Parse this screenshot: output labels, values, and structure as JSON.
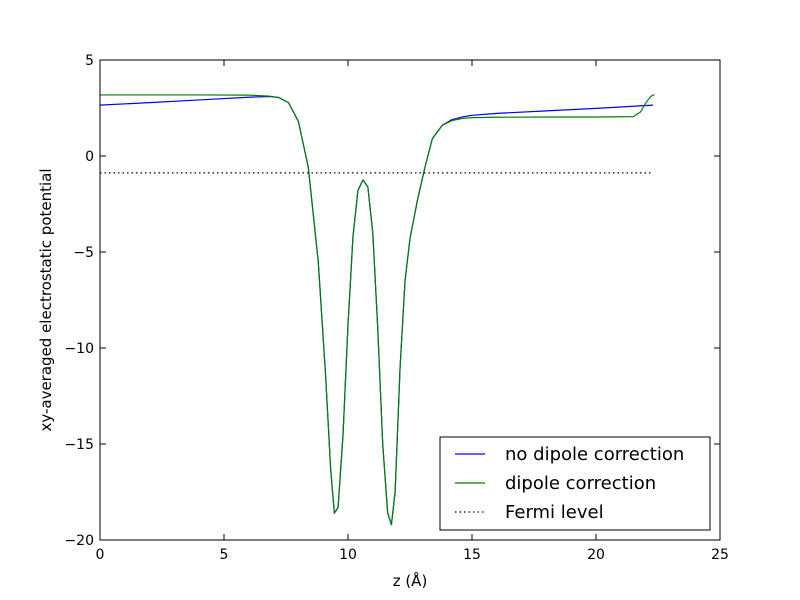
{
  "chart_data": {
    "type": "line",
    "title": "",
    "xlabel": "z (Å)",
    "ylabel": "xy-averaged electrostatic potential",
    "xlim": [
      0,
      25
    ],
    "ylim": [
      -20,
      5
    ],
    "xticks": [
      0,
      5,
      10,
      15,
      20,
      25
    ],
    "yticks": [
      -20,
      -15,
      -10,
      -5,
      0,
      5
    ],
    "xtick_labels": [
      "0",
      "5",
      "10",
      "15",
      "20",
      "25"
    ],
    "ytick_labels": [
      "−20",
      "−15",
      "−10",
      "−5",
      "0",
      "5"
    ],
    "grid": false,
    "legend_position": "bottom-right",
    "series": [
      {
        "name": "no dipole correction",
        "color": "#0000ff",
        "style": "solid",
        "x": [
          0,
          2,
          4,
          6,
          6.8,
          7.2,
          7.6,
          8.0,
          8.4,
          8.8,
          9.1,
          9.3,
          9.45,
          9.6,
          9.8,
          10.0,
          10.2,
          10.4,
          10.6,
          10.8,
          11.0,
          11.2,
          11.4,
          11.6,
          11.75,
          11.9,
          12.1,
          12.3,
          12.5,
          12.8,
          13.1,
          13.4,
          13.8,
          14.2,
          14.6,
          15.0,
          16,
          18,
          20,
          22.3
        ],
        "y": [
          2.65,
          2.78,
          2.92,
          3.06,
          3.1,
          3.05,
          2.78,
          1.8,
          -0.6,
          -5.5,
          -11.5,
          -16.3,
          -18.6,
          -18.3,
          -14.5,
          -8.8,
          -4.2,
          -1.8,
          -1.25,
          -1.6,
          -4.0,
          -9.0,
          -15.0,
          -18.6,
          -19.2,
          -17.5,
          -11.0,
          -6.5,
          -4.3,
          -2.3,
          -0.6,
          0.9,
          1.6,
          1.9,
          2.03,
          2.12,
          2.22,
          2.35,
          2.48,
          2.65
        ]
      },
      {
        "name": "dipole correction",
        "color": "#008000",
        "style": "solid",
        "x": [
          0,
          2,
          4,
          6,
          6.8,
          7.2,
          7.6,
          8.0,
          8.4,
          8.8,
          9.1,
          9.3,
          9.45,
          9.6,
          9.8,
          10.0,
          10.2,
          10.4,
          10.6,
          10.8,
          11.0,
          11.2,
          11.4,
          11.6,
          11.75,
          11.9,
          12.1,
          12.3,
          12.5,
          12.8,
          13.1,
          13.4,
          13.8,
          14.2,
          14.6,
          15.0,
          16,
          18,
          20,
          21.5,
          21.8,
          22.0,
          22.2,
          22.35
        ],
        "y": [
          3.18,
          3.18,
          3.18,
          3.17,
          3.12,
          3.05,
          2.78,
          1.8,
          -0.6,
          -5.5,
          -11.5,
          -16.3,
          -18.6,
          -18.3,
          -14.5,
          -8.8,
          -4.2,
          -1.8,
          -1.25,
          -1.6,
          -4.0,
          -9.0,
          -15.0,
          -18.6,
          -19.2,
          -17.5,
          -11.0,
          -6.5,
          -4.3,
          -2.3,
          -0.6,
          0.9,
          1.6,
          1.85,
          1.95,
          2.0,
          2.02,
          2.03,
          2.03,
          2.05,
          2.3,
          2.75,
          3.1,
          3.2
        ]
      },
      {
        "name": "Fermi level",
        "color": "#000000",
        "style": "dotted",
        "x": [
          0,
          22.3
        ],
        "y": [
          -0.88,
          -0.88
        ]
      }
    ]
  }
}
